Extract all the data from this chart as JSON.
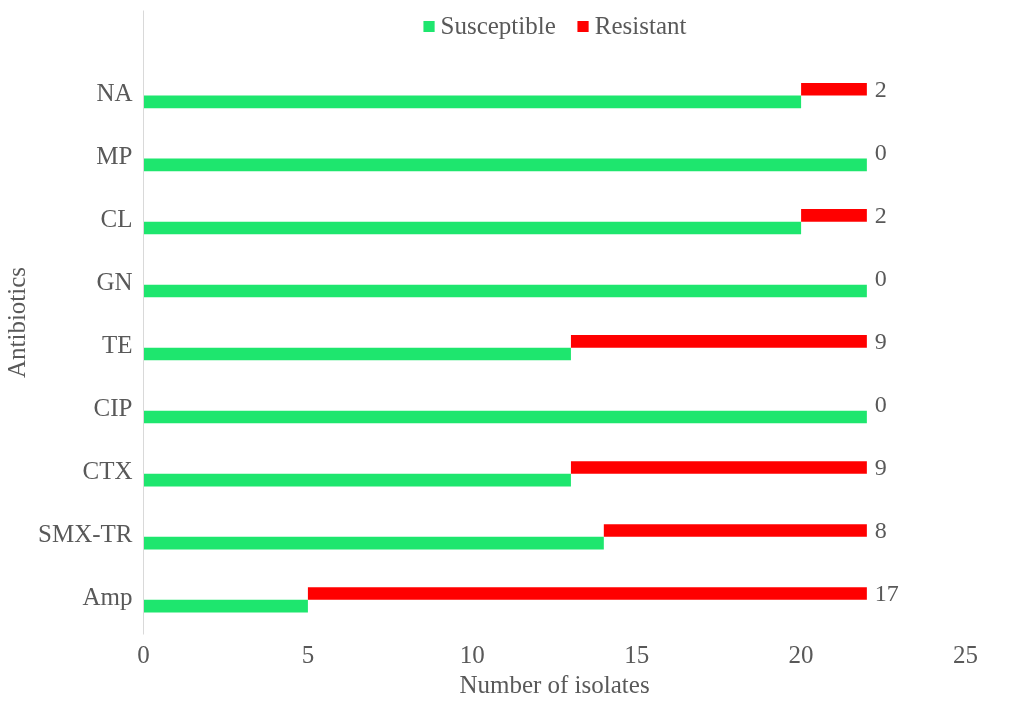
{
  "chart_data": {
    "type": "bar",
    "orientation": "horizontal",
    "stacked": true,
    "xlabel": "Number of isolates",
    "ylabel": "Antibiotics",
    "categories": [
      "NA",
      "MP",
      "CL",
      "GN",
      "TE",
      "CIP",
      "CTX",
      "SMX-TR",
      "Amp"
    ],
    "series": [
      {
        "name": "Susceptible",
        "color": "#1ee66e",
        "values": [
          20,
          22,
          20,
          22,
          13,
          22,
          13,
          14,
          5
        ]
      },
      {
        "name": "Resistant",
        "color": "#ff0000",
        "values": [
          2,
          0,
          2,
          0,
          9,
          0,
          9,
          8,
          17
        ],
        "value_labels": [
          "2",
          "0",
          "2",
          "0",
          "9",
          "0",
          "9",
          "8",
          "17"
        ]
      }
    ],
    "xlim": [
      0,
      25
    ],
    "xticks": [
      0,
      5,
      10,
      15,
      20,
      25
    ],
    "grid": false,
    "legend": "top"
  }
}
